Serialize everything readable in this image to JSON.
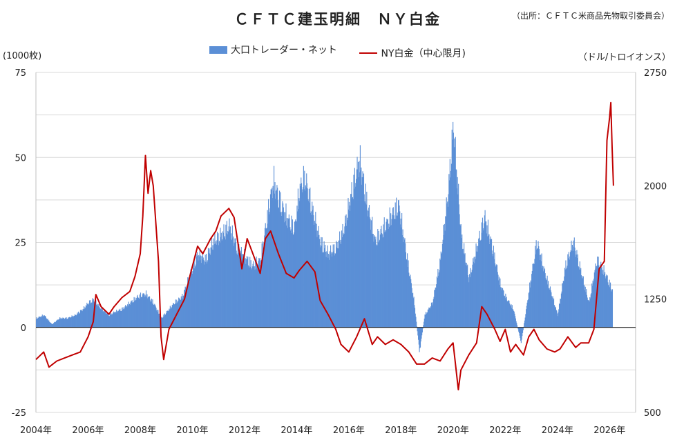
{
  "header": {
    "title": "ＣＦＴＣ建玉明細　ＮＹ白金",
    "source": "（出所：ＣＦＴＣ米商品先物取引委員会）"
  },
  "colors": {
    "bar": "#5b8fd6",
    "line": "#c00000",
    "grid": "#d9d9d9",
    "axis": "#000000"
  },
  "chart_data": {
    "type": "bar",
    "title": "ＣＦＴＣ建玉明細　ＮＹ白金",
    "ylabel_left": "(1000枚)",
    "ylabel_right": "（ドル/トロイオンス）",
    "yleft_range": [
      -25,
      75
    ],
    "yleft_ticks": [
      "75",
      "50",
      "25",
      "0",
      "-25"
    ],
    "yright_range": [
      500,
      2750
    ],
    "yright_ticks": [
      "2750",
      "2000",
      "1250",
      "500"
    ],
    "x_range": [
      2004,
      2027
    ],
    "x_ticks": [
      "2004年",
      "2006年",
      "2008年",
      "2010年",
      "2012年",
      "2014年",
      "2016年",
      "2018年",
      "2020年",
      "2022年",
      "2024年",
      "2026年"
    ],
    "grid": true,
    "legend_position": "top",
    "series": [
      {
        "name": "大口トレーダー・ネット",
        "type": "bar",
        "axis": "left",
        "points": [
          [
            2004.0,
            3
          ],
          [
            2004.3,
            4
          ],
          [
            2004.6,
            1
          ],
          [
            2004.9,
            3
          ],
          [
            2005.2,
            3
          ],
          [
            2005.5,
            4
          ],
          [
            2005.8,
            6
          ],
          [
            2006.0,
            8
          ],
          [
            2006.2,
            9
          ],
          [
            2006.5,
            6
          ],
          [
            2006.8,
            4
          ],
          [
            2007.0,
            5
          ],
          [
            2007.3,
            6
          ],
          [
            2007.6,
            8
          ],
          [
            2007.9,
            10
          ],
          [
            2008.2,
            11
          ],
          [
            2008.5,
            8
          ],
          [
            2008.8,
            3
          ],
          [
            2009.0,
            5
          ],
          [
            2009.3,
            8
          ],
          [
            2009.6,
            10
          ],
          [
            2009.9,
            17
          ],
          [
            2010.2,
            24
          ],
          [
            2010.5,
            22
          ],
          [
            2010.8,
            28
          ],
          [
            2011.1,
            30
          ],
          [
            2011.4,
            33
          ],
          [
            2011.7,
            26
          ],
          [
            2012.0,
            23
          ],
          [
            2012.3,
            20
          ],
          [
            2012.6,
            22
          ],
          [
            2012.9,
            38
          ],
          [
            2013.1,
            48
          ],
          [
            2013.3,
            42
          ],
          [
            2013.6,
            36
          ],
          [
            2013.9,
            32
          ],
          [
            2014.1,
            45
          ],
          [
            2014.3,
            49
          ],
          [
            2014.6,
            38
          ],
          [
            2014.9,
            28
          ],
          [
            2015.2,
            24
          ],
          [
            2015.5,
            26
          ],
          [
            2015.8,
            32
          ],
          [
            2016.1,
            44
          ],
          [
            2016.4,
            55
          ],
          [
            2016.7,
            40
          ],
          [
            2017.0,
            28
          ],
          [
            2017.3,
            32
          ],
          [
            2017.6,
            36
          ],
          [
            2017.9,
            40
          ],
          [
            2018.2,
            24
          ],
          [
            2018.5,
            8
          ],
          [
            2018.7,
            -8
          ],
          [
            2018.9,
            4
          ],
          [
            2019.2,
            8
          ],
          [
            2019.5,
            22
          ],
          [
            2019.8,
            44
          ],
          [
            2020.0,
            66
          ],
          [
            2020.3,
            30
          ],
          [
            2020.6,
            16
          ],
          [
            2020.9,
            26
          ],
          [
            2021.2,
            36
          ],
          [
            2021.5,
            26
          ],
          [
            2021.8,
            14
          ],
          [
            2022.0,
            10
          ],
          [
            2022.3,
            6
          ],
          [
            2022.6,
            -5
          ],
          [
            2022.9,
            12
          ],
          [
            2023.2,
            28
          ],
          [
            2023.5,
            18
          ],
          [
            2023.8,
            10
          ],
          [
            2024.0,
            4
          ],
          [
            2024.3,
            20
          ],
          [
            2024.6,
            28
          ],
          [
            2024.9,
            18
          ],
          [
            2025.2,
            8
          ],
          [
            2025.5,
            22
          ],
          [
            2025.8,
            18
          ],
          [
            2026.1,
            12
          ]
        ]
      },
      {
        "name": "NY白金（中心限月)",
        "type": "line",
        "axis": "right",
        "points": [
          [
            2004.0,
            850
          ],
          [
            2004.3,
            900
          ],
          [
            2004.5,
            800
          ],
          [
            2004.8,
            840
          ],
          [
            2005.1,
            860
          ],
          [
            2005.4,
            880
          ],
          [
            2005.7,
            900
          ],
          [
            2006.0,
            1000
          ],
          [
            2006.2,
            1100
          ],
          [
            2006.3,
            1280
          ],
          [
            2006.5,
            1200
          ],
          [
            2006.8,
            1150
          ],
          [
            2007.0,
            1200
          ],
          [
            2007.3,
            1260
          ],
          [
            2007.6,
            1300
          ],
          [
            2007.8,
            1400
          ],
          [
            2008.0,
            1550
          ],
          [
            2008.1,
            1800
          ],
          [
            2008.2,
            2200
          ],
          [
            2008.3,
            1950
          ],
          [
            2008.4,
            2100
          ],
          [
            2008.5,
            2000
          ],
          [
            2008.7,
            1500
          ],
          [
            2008.8,
            1000
          ],
          [
            2008.9,
            850
          ],
          [
            2009.1,
            1050
          ],
          [
            2009.4,
            1150
          ],
          [
            2009.7,
            1250
          ],
          [
            2009.9,
            1400
          ],
          [
            2010.2,
            1600
          ],
          [
            2010.4,
            1550
          ],
          [
            2010.7,
            1650
          ],
          [
            2010.9,
            1700
          ],
          [
            2011.1,
            1800
          ],
          [
            2011.4,
            1850
          ],
          [
            2011.6,
            1790
          ],
          [
            2011.9,
            1450
          ],
          [
            2012.1,
            1650
          ],
          [
            2012.3,
            1560
          ],
          [
            2012.6,
            1420
          ],
          [
            2012.8,
            1650
          ],
          [
            2013.0,
            1700
          ],
          [
            2013.3,
            1550
          ],
          [
            2013.6,
            1420
          ],
          [
            2013.9,
            1390
          ],
          [
            2014.1,
            1440
          ],
          [
            2014.4,
            1500
          ],
          [
            2014.7,
            1430
          ],
          [
            2014.9,
            1240
          ],
          [
            2015.2,
            1150
          ],
          [
            2015.5,
            1050
          ],
          [
            2015.7,
            950
          ],
          [
            2016.0,
            900
          ],
          [
            2016.3,
            1000
          ],
          [
            2016.6,
            1120
          ],
          [
            2016.9,
            950
          ],
          [
            2017.1,
            1000
          ],
          [
            2017.4,
            950
          ],
          [
            2017.7,
            980
          ],
          [
            2018.0,
            950
          ],
          [
            2018.3,
            900
          ],
          [
            2018.6,
            820
          ],
          [
            2018.9,
            820
          ],
          [
            2019.2,
            860
          ],
          [
            2019.5,
            840
          ],
          [
            2019.8,
            920
          ],
          [
            2020.0,
            960
          ],
          [
            2020.2,
            650
          ],
          [
            2020.3,
            780
          ],
          [
            2020.6,
            880
          ],
          [
            2020.9,
            960
          ],
          [
            2021.1,
            1200
          ],
          [
            2021.3,
            1150
          ],
          [
            2021.6,
            1050
          ],
          [
            2021.8,
            970
          ],
          [
            2022.0,
            1050
          ],
          [
            2022.2,
            900
          ],
          [
            2022.4,
            950
          ],
          [
            2022.7,
            880
          ],
          [
            2022.9,
            1000
          ],
          [
            2023.1,
            1050
          ],
          [
            2023.3,
            980
          ],
          [
            2023.6,
            920
          ],
          [
            2023.9,
            900
          ],
          [
            2024.1,
            920
          ],
          [
            2024.4,
            1000
          ],
          [
            2024.7,
            930
          ],
          [
            2024.9,
            960
          ],
          [
            2025.2,
            960
          ],
          [
            2025.4,
            1050
          ],
          [
            2025.6,
            1450
          ],
          [
            2025.8,
            1500
          ],
          [
            2025.9,
            2300
          ],
          [
            2026.0,
            2450
          ],
          [
            2026.05,
            2550
          ],
          [
            2026.1,
            2250
          ],
          [
            2026.15,
            2000
          ]
        ]
      }
    ]
  }
}
